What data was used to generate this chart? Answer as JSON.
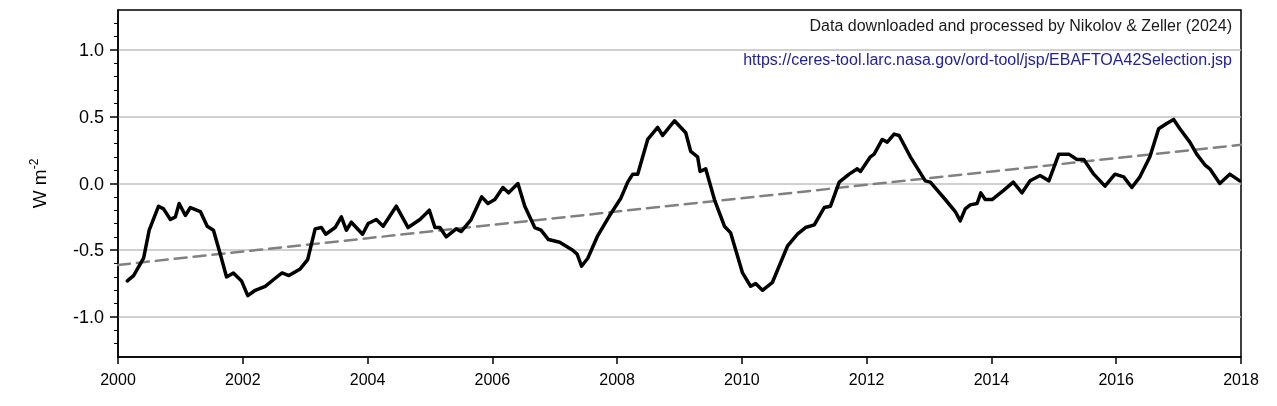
{
  "chart_data": {
    "type": "line",
    "ylabel": "W m$^{-2}$",
    "annotations": [
      "Data downloaded and processed by Nikolov & Zeller (2024)",
      "https://ceres-tool.larc.nasa.gov/ord-tool/jsp/EBAFTOA42Selection.jsp"
    ],
    "series": [
      {
        "color": "#000000",
        "line_style": "solid",
        "x": [
          2000.15,
          2000.25,
          2000.41,
          2000.5,
          2000.65,
          2000.73,
          2000.84,
          2000.92,
          2000.98,
          2001.08,
          2001.16,
          2001.32,
          2001.43,
          2001.53,
          2001.64,
          2001.74,
          2001.85,
          2001.98,
          2002.08,
          2002.2,
          2002.36,
          2002.52,
          2002.63,
          2002.74,
          2002.92,
          2003.04,
          2003.16,
          2003.26,
          2003.33,
          2003.48,
          2003.58,
          2003.66,
          2003.74,
          2003.92,
          2004.01,
          2004.14,
          2004.25,
          2004.46,
          2004.65,
          2004.84,
          2004.99,
          2005.08,
          2005.16,
          2005.26,
          2005.42,
          2005.5,
          2005.66,
          2005.83,
          2005.93,
          2006.04,
          2006.17,
          2006.26,
          2006.41,
          2006.52,
          2006.68,
          2006.78,
          2006.9,
          2007.08,
          2007.29,
          2007.36,
          2007.43,
          2007.53,
          2007.69,
          2007.88,
          2008.06,
          2008.17,
          2008.25,
          2008.33,
          2008.49,
          2008.65,
          2008.73,
          2008.92,
          2009.1,
          2009.18,
          2009.29,
          2009.33,
          2009.42,
          2009.56,
          2009.72,
          2009.82,
          2010.01,
          2010.14,
          2010.22,
          2010.33,
          2010.49,
          2010.73,
          2010.89,
          2011.02,
          2011.16,
          2011.32,
          2011.42,
          2011.56,
          2011.72,
          2011.85,
          2011.9,
          2012.06,
          2012.12,
          2012.25,
          2012.33,
          2012.44,
          2012.52,
          2012.7,
          2012.94,
          2013.02,
          2013.26,
          2013.42,
          2013.5,
          2013.58,
          2013.66,
          2013.77,
          2013.83,
          2013.9,
          2014.01,
          2014.2,
          2014.35,
          2014.49,
          2014.62,
          2014.78,
          2014.92,
          2015.08,
          2015.24,
          2015.37,
          2015.48,
          2015.64,
          2015.82,
          2015.98,
          2016.12,
          2016.25,
          2016.38,
          2016.54,
          2016.68,
          2016.81,
          2016.92,
          2017.02,
          2017.18,
          2017.29,
          2017.42,
          2017.5,
          2017.66,
          2017.82,
          2017.98
        ],
        "values": [
          -0.73,
          -0.69,
          -0.56,
          -0.35,
          -0.17,
          -0.19,
          -0.27,
          -0.25,
          -0.15,
          -0.24,
          -0.18,
          -0.21,
          -0.32,
          -0.35,
          -0.53,
          -0.7,
          -0.67,
          -0.73,
          -0.84,
          -0.8,
          -0.77,
          -0.71,
          -0.67,
          -0.69,
          -0.64,
          -0.57,
          -0.34,
          -0.33,
          -0.38,
          -0.33,
          -0.25,
          -0.35,
          -0.29,
          -0.38,
          -0.3,
          -0.27,
          -0.32,
          -0.17,
          -0.33,
          -0.27,
          -0.2,
          -0.33,
          -0.33,
          -0.4,
          -0.34,
          -0.36,
          -0.27,
          -0.1,
          -0.15,
          -0.12,
          -0.03,
          -0.07,
          0.0,
          -0.17,
          -0.33,
          -0.35,
          -0.42,
          -0.44,
          -0.5,
          -0.53,
          -0.62,
          -0.56,
          -0.39,
          -0.24,
          -0.11,
          0.01,
          0.07,
          0.07,
          0.33,
          0.42,
          0.36,
          0.47,
          0.38,
          0.24,
          0.2,
          0.09,
          0.11,
          -0.12,
          -0.32,
          -0.37,
          -0.67,
          -0.77,
          -0.75,
          -0.8,
          -0.74,
          -0.47,
          -0.38,
          -0.33,
          -0.31,
          -0.18,
          -0.17,
          0.01,
          0.07,
          0.11,
          0.09,
          0.2,
          0.22,
          0.33,
          0.31,
          0.37,
          0.36,
          0.2,
          0.02,
          0.01,
          -0.12,
          -0.21,
          -0.28,
          -0.19,
          -0.16,
          -0.15,
          -0.07,
          -0.12,
          -0.12,
          -0.05,
          0.01,
          -0.07,
          0.02,
          0.06,
          0.02,
          0.22,
          0.22,
          0.18,
          0.18,
          0.07,
          -0.02,
          0.07,
          0.05,
          -0.03,
          0.05,
          0.2,
          0.41,
          0.45,
          0.48,
          0.41,
          0.31,
          0.22,
          0.14,
          0.11,
          0.0,
          0.07,
          0.02
        ]
      },
      {
        "color": "#808080",
        "line_style": "dashed",
        "x": [
          2000,
          2018
        ],
        "values": [
          -0.61,
          0.29
        ]
      }
    ],
    "xlim": [
      2000,
      2018
    ],
    "xticks": [
      2000,
      2002,
      2004,
      2006,
      2008,
      2010,
      2012,
      2014,
      2016,
      2018
    ],
    "ylim": [
      -1.3,
      1.3
    ],
    "yticks": [
      {
        "value": -1,
        "label": "-1.0"
      },
      {
        "value": -0.5,
        "label": "-0.5"
      },
      {
        "value": 0,
        "label": "0.0"
      },
      {
        "value": 0.5,
        "label": "0.5"
      },
      {
        "value": 1,
        "label": "1.0"
      }
    ],
    "grid": "y",
    "marker": "none"
  }
}
